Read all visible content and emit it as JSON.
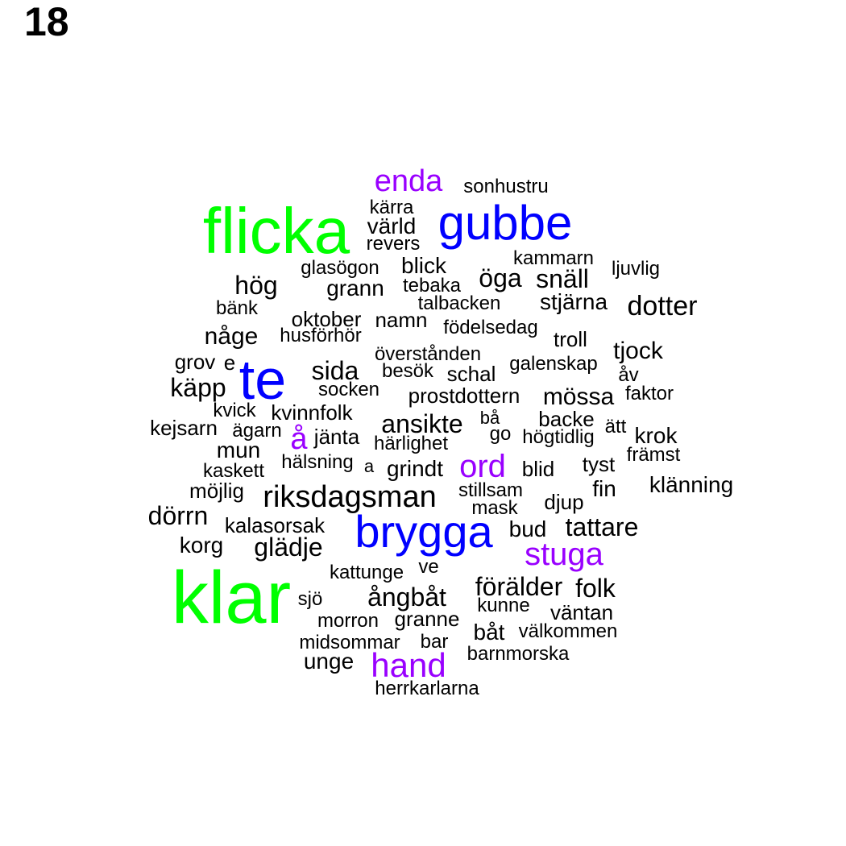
{
  "plot_number": "18",
  "colors": {
    "high": "#00ff00",
    "mid": "#0000ff",
    "low": "#9900ff",
    "base": "#000000"
  },
  "words": [
    {
      "text": "klar",
      "tier": "high"
    },
    {
      "text": "flicka",
      "tier": "high"
    },
    {
      "text": "te",
      "tier": "mid"
    },
    {
      "text": "gubbe",
      "tier": "mid"
    },
    {
      "text": "brygga",
      "tier": "mid"
    },
    {
      "text": "enda",
      "tier": "low"
    },
    {
      "text": "stuga",
      "tier": "low"
    },
    {
      "text": "hand",
      "tier": "low"
    },
    {
      "text": "ord",
      "tier": "low"
    },
    {
      "text": "å",
      "tier": "low"
    },
    {
      "text": "sonhustru",
      "tier": "base"
    },
    {
      "text": "kärra",
      "tier": "base"
    },
    {
      "text": "värld",
      "tier": "base"
    },
    {
      "text": "revers",
      "tier": "base"
    },
    {
      "text": "kammarn",
      "tier": "base"
    },
    {
      "text": "ljuvlig",
      "tier": "base"
    },
    {
      "text": "glasögon",
      "tier": "base"
    },
    {
      "text": "blick",
      "tier": "base"
    },
    {
      "text": "öga",
      "tier": "base"
    },
    {
      "text": "snäll",
      "tier": "base"
    },
    {
      "text": "hög",
      "tier": "base"
    },
    {
      "text": "grann",
      "tier": "base"
    },
    {
      "text": "tebaka",
      "tier": "base"
    },
    {
      "text": "stjärna",
      "tier": "base"
    },
    {
      "text": "dotter",
      "tier": "base"
    },
    {
      "text": "talbacken",
      "tier": "base"
    },
    {
      "text": "bänk",
      "tier": "base"
    },
    {
      "text": "oktober",
      "tier": "base"
    },
    {
      "text": "namn",
      "tier": "base"
    },
    {
      "text": "födelsedag",
      "tier": "base"
    },
    {
      "text": "någe",
      "tier": "base"
    },
    {
      "text": "husförhör",
      "tier": "base"
    },
    {
      "text": "troll",
      "tier": "base"
    },
    {
      "text": "tjock",
      "tier": "base"
    },
    {
      "text": "överstånden",
      "tier": "base"
    },
    {
      "text": "grov",
      "tier": "base"
    },
    {
      "text": "e",
      "tier": "base"
    },
    {
      "text": "galenskap",
      "tier": "base"
    },
    {
      "text": "sida",
      "tier": "base"
    },
    {
      "text": "besök",
      "tier": "base"
    },
    {
      "text": "schal",
      "tier": "base"
    },
    {
      "text": "åv",
      "tier": "base"
    },
    {
      "text": "käpp",
      "tier": "base"
    },
    {
      "text": "socken",
      "tier": "base"
    },
    {
      "text": "prostdottern",
      "tier": "base"
    },
    {
      "text": "mössa",
      "tier": "base"
    },
    {
      "text": "faktor",
      "tier": "base"
    },
    {
      "text": "kvick",
      "tier": "base"
    },
    {
      "text": "kvinnfolk",
      "tier": "base"
    },
    {
      "text": "bå",
      "tier": "base"
    },
    {
      "text": "backe",
      "tier": "base"
    },
    {
      "text": "ätt",
      "tier": "base"
    },
    {
      "text": "kejsarn",
      "tier": "base"
    },
    {
      "text": "ägarn",
      "tier": "base"
    },
    {
      "text": "ansikte",
      "tier": "base"
    },
    {
      "text": "krok",
      "tier": "base"
    },
    {
      "text": "jänta",
      "tier": "base"
    },
    {
      "text": "go",
      "tier": "base"
    },
    {
      "text": "högtidlig",
      "tier": "base"
    },
    {
      "text": "mun",
      "tier": "base"
    },
    {
      "text": "härlighet",
      "tier": "base"
    },
    {
      "text": "främst",
      "tier": "base"
    },
    {
      "text": "hälsning",
      "tier": "base"
    },
    {
      "text": "a",
      "tier": "base"
    },
    {
      "text": "grindt",
      "tier": "base"
    },
    {
      "text": "blid",
      "tier": "base"
    },
    {
      "text": "tyst",
      "tier": "base"
    },
    {
      "text": "kaskett",
      "tier": "base"
    },
    {
      "text": "klänning",
      "tier": "base"
    },
    {
      "text": "möjlig",
      "tier": "base"
    },
    {
      "text": "riksdagsman",
      "tier": "base"
    },
    {
      "text": "stillsam",
      "tier": "base"
    },
    {
      "text": "fin",
      "tier": "base"
    },
    {
      "text": "djup",
      "tier": "base"
    },
    {
      "text": "mask",
      "tier": "base"
    },
    {
      "text": "dörrn",
      "tier": "base"
    },
    {
      "text": "kalasorsak",
      "tier": "base"
    },
    {
      "text": "bud",
      "tier": "base"
    },
    {
      "text": "tattare",
      "tier": "base"
    },
    {
      "text": "korg",
      "tier": "base"
    },
    {
      "text": "glädje",
      "tier": "base"
    },
    {
      "text": "ve",
      "tier": "base"
    },
    {
      "text": "kattunge",
      "tier": "base"
    },
    {
      "text": "förälder",
      "tier": "base"
    },
    {
      "text": "folk",
      "tier": "base"
    },
    {
      "text": "sjö",
      "tier": "base"
    },
    {
      "text": "ångbåt",
      "tier": "base"
    },
    {
      "text": "kunne",
      "tier": "base"
    },
    {
      "text": "väntan",
      "tier": "base"
    },
    {
      "text": "morron",
      "tier": "base"
    },
    {
      "text": "granne",
      "tier": "base"
    },
    {
      "text": "båt",
      "tier": "base"
    },
    {
      "text": "välkommen",
      "tier": "base"
    },
    {
      "text": "midsommar",
      "tier": "base"
    },
    {
      "text": "bar",
      "tier": "base"
    },
    {
      "text": "barnmorska",
      "tier": "base"
    },
    {
      "text": "unge",
      "tier": "base"
    },
    {
      "text": "herrkarlarna",
      "tier": "base"
    }
  ]
}
